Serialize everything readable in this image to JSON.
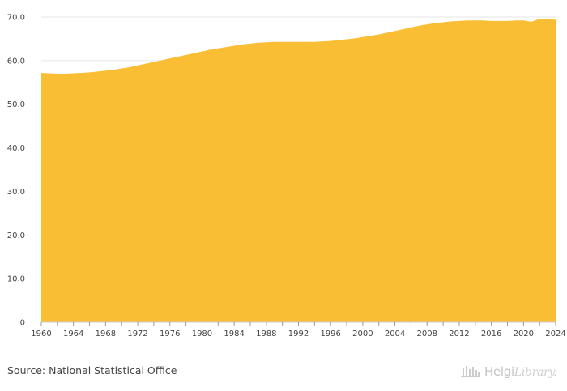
{
  "chart_data": {
    "type": "area",
    "title": "",
    "xlabel": "",
    "ylabel": "",
    "x": [
      1960,
      1961,
      1962,
      1963,
      1964,
      1965,
      1966,
      1967,
      1968,
      1969,
      1970,
      1971,
      1972,
      1973,
      1974,
      1975,
      1976,
      1977,
      1978,
      1979,
      1980,
      1981,
      1982,
      1983,
      1984,
      1985,
      1986,
      1987,
      1988,
      1989,
      1990,
      1991,
      1992,
      1993,
      1994,
      1995,
      1996,
      1997,
      1998,
      1999,
      2000,
      2001,
      2002,
      2003,
      2004,
      2005,
      2006,
      2007,
      2008,
      2009,
      2010,
      2011,
      2012,
      2013,
      2014,
      2015,
      2016,
      2017,
      2018,
      2019,
      2020,
      2021,
      2022,
      2023,
      2024
    ],
    "values": [
      57.2,
      57.1,
      57.0,
      57.0,
      57.1,
      57.2,
      57.3,
      57.5,
      57.7,
      57.9,
      58.2,
      58.5,
      58.9,
      59.3,
      59.7,
      60.1,
      60.5,
      60.9,
      61.3,
      61.7,
      62.1,
      62.5,
      62.8,
      63.1,
      63.4,
      63.7,
      63.9,
      64.1,
      64.2,
      64.3,
      64.3,
      64.3,
      64.3,
      64.3,
      64.3,
      64.4,
      64.5,
      64.7,
      64.9,
      65.1,
      65.4,
      65.7,
      66.0,
      66.4,
      66.8,
      67.2,
      67.6,
      68.0,
      68.3,
      68.6,
      68.8,
      69.0,
      69.1,
      69.2,
      69.2,
      69.2,
      69.1,
      69.1,
      69.1,
      69.2,
      69.2,
      68.9,
      69.6,
      69.5,
      69.4
    ],
    "ylim": [
      0,
      70
    ],
    "y_ticks": [
      "0",
      "10.0",
      "20.0",
      "30.0",
      "40.0",
      "50.0",
      "60.0",
      "70.0"
    ],
    "y_tick_values": [
      0,
      10,
      20,
      30,
      40,
      50,
      60,
      70
    ],
    "x_ticks": [
      "1960",
      "1964",
      "1968",
      "1972",
      "1976",
      "1980",
      "1984",
      "1988",
      "1992",
      "1996",
      "2000",
      "2004",
      "2008",
      "2012",
      "2016",
      "2020",
      "2024"
    ],
    "x_tick_values": [
      1960,
      1964,
      1968,
      1972,
      1976,
      1980,
      1984,
      1988,
      1992,
      1996,
      2000,
      2004,
      2008,
      2012,
      2016,
      2020,
      2024
    ],
    "grid": true,
    "fill_color": "#f9be33",
    "grid_color": "#e6e6e6",
    "axis_color": "#444444"
  },
  "footer": {
    "source": "Source: National Statistical Office",
    "brand_bold": "Helgi",
    "brand_light": "Library."
  }
}
